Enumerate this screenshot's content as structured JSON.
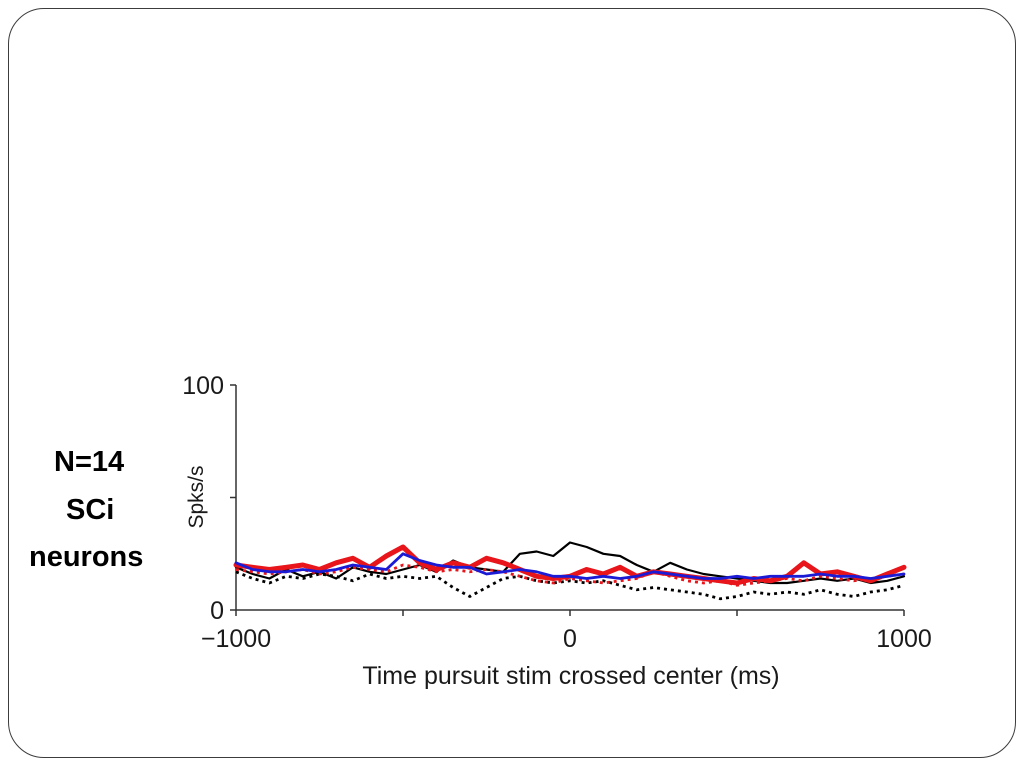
{
  "caption": {
    "line1": "N=14",
    "line2": "SCi",
    "line3": "neurons"
  },
  "colors": {
    "black": "#000000",
    "red": "#e8151b",
    "blue": "#1b1bd6",
    "axis": "#333333"
  },
  "chart_data": {
    "type": "line",
    "xlabel": "Time pursuit stim crossed center (ms)",
    "ylabel": "Spks/s",
    "xlim": [
      -1000,
      1000
    ],
    "ylim": [
      0,
      100
    ],
    "xticks": [
      -1000,
      -500,
      0,
      500,
      1000
    ],
    "xtick_labels": [
      "−1000",
      "",
      "0",
      "",
      "1000"
    ],
    "yticks": [
      0,
      50,
      100
    ],
    "ytick_labels": [
      "0",
      "",
      "100"
    ],
    "grid": false,
    "series": [
      {
        "color": "#000000",
        "style": "solid",
        "width": "thin",
        "x": [
          -1000,
          -950,
          -900,
          -850,
          -800,
          -750,
          -700,
          -650,
          -600,
          -550,
          -500,
          -450,
          -400,
          -350,
          -300,
          -250,
          -200,
          -150,
          -100,
          -50,
          0,
          50,
          100,
          150,
          200,
          250,
          300,
          350,
          400,
          450,
          500,
          550,
          600,
          650,
          700,
          750,
          800,
          850,
          900,
          950,
          1000
        ],
        "y": [
          19,
          16,
          14,
          18,
          15,
          17,
          14,
          19,
          17,
          16,
          18,
          20,
          17,
          22,
          19,
          18,
          17,
          25,
          26,
          24,
          30,
          28,
          25,
          24,
          20,
          17,
          21,
          18,
          16,
          15,
          14,
          13,
          12,
          12,
          13,
          14,
          13,
          14,
          12,
          13,
          15
        ]
      },
      {
        "color": "#000000",
        "style": "dotted",
        "width": "medium",
        "x": [
          -1000,
          -950,
          -900,
          -850,
          -800,
          -750,
          -700,
          -650,
          -600,
          -550,
          -500,
          -450,
          -400,
          -350,
          -300,
          -250,
          -200,
          -150,
          -100,
          -50,
          0,
          50,
          100,
          150,
          200,
          250,
          300,
          350,
          400,
          450,
          500,
          550,
          600,
          650,
          700,
          750,
          800,
          850,
          900,
          950,
          1000
        ],
        "y": [
          17,
          14,
          12,
          15,
          14,
          16,
          15,
          13,
          16,
          14,
          15,
          14,
          15,
          10,
          6,
          10,
          14,
          15,
          13,
          12,
          13,
          12,
          13,
          11,
          9,
          10,
          9,
          8,
          7,
          5,
          6,
          8,
          7,
          8,
          7,
          9,
          7,
          6,
          8,
          9,
          11
        ]
      },
      {
        "color": "#e8151b",
        "style": "solid",
        "width": "thick",
        "x": [
          -1000,
          -950,
          -900,
          -850,
          -800,
          -750,
          -700,
          -650,
          -600,
          -550,
          -500,
          -450,
          -400,
          -350,
          -300,
          -250,
          -200,
          -150,
          -100,
          -50,
          0,
          50,
          100,
          150,
          200,
          250,
          300,
          350,
          400,
          450,
          500,
          550,
          600,
          650,
          700,
          750,
          800,
          850,
          900,
          950,
          1000
        ],
        "y": [
          20,
          19,
          18,
          19,
          20,
          18,
          21,
          23,
          19,
          24,
          28,
          21,
          18,
          21,
          19,
          23,
          21,
          18,
          15,
          14,
          15,
          18,
          16,
          19,
          15,
          17,
          16,
          15,
          14,
          13,
          12,
          14,
          13,
          15,
          21,
          16,
          17,
          15,
          13,
          16,
          19
        ]
      },
      {
        "color": "#e8151b",
        "style": "dotted",
        "width": "medium",
        "x": [
          -1000,
          -950,
          -900,
          -850,
          -800,
          -750,
          -700,
          -650,
          -600,
          -550,
          -500,
          -450,
          -400,
          -350,
          -300,
          -250,
          -200,
          -150,
          -100,
          -50,
          0,
          50,
          100,
          150,
          200,
          250,
          300,
          350,
          400,
          450,
          500,
          550,
          600,
          650,
          700,
          750,
          800,
          850,
          900,
          950,
          1000
        ],
        "y": [
          18,
          17,
          16,
          17,
          18,
          16,
          17,
          19,
          18,
          17,
          20,
          19,
          17,
          18,
          17,
          18,
          17,
          15,
          13,
          12,
          14,
          13,
          12,
          13,
          14,
          17,
          15,
          13,
          12,
          13,
          11,
          12,
          13,
          14,
          13,
          15,
          14,
          13,
          14,
          15,
          16
        ]
      },
      {
        "color": "#1b1bd6",
        "style": "solid",
        "width": "medium",
        "x": [
          -1000,
          -950,
          -900,
          -850,
          -800,
          -750,
          -700,
          -650,
          -600,
          -550,
          -500,
          -450,
          -400,
          -350,
          -300,
          -250,
          -200,
          -150,
          -100,
          -50,
          0,
          50,
          100,
          150,
          200,
          250,
          300,
          350,
          400,
          450,
          500,
          550,
          600,
          650,
          700,
          750,
          800,
          850,
          900,
          950,
          1000
        ],
        "y": [
          21,
          18,
          17,
          17,
          18,
          17,
          18,
          20,
          19,
          18,
          25,
          22,
          20,
          19,
          19,
          16,
          17,
          18,
          17,
          15,
          15,
          14,
          15,
          14,
          15,
          17,
          16,
          15,
          14,
          14,
          15,
          14,
          15,
          15,
          15,
          16,
          15,
          15,
          14,
          15,
          16
        ]
      }
    ]
  }
}
